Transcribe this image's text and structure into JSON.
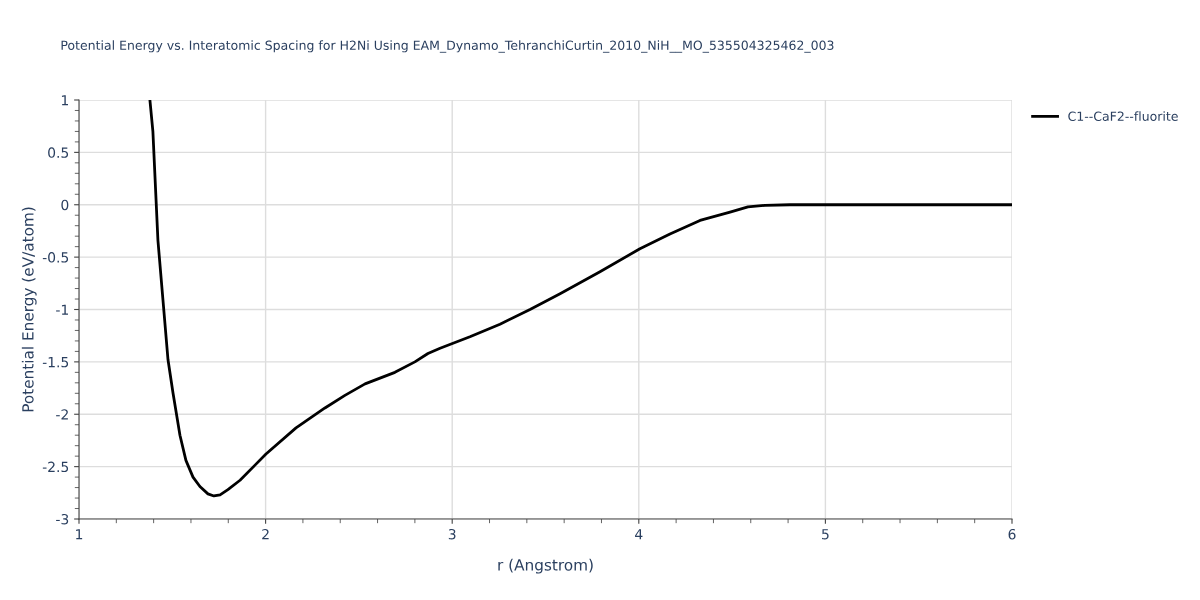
{
  "chart_data": {
    "type": "line",
    "title": "Potential Energy vs. Interatomic Spacing for H2Ni Using EAM_Dynamo_TehranchiCurtin_2010_NiH__MO_535504325462_003",
    "xlabel": "r (Angstrom)",
    "ylabel": "Potential Energy (eV/atom)",
    "series": [
      {
        "name": "C1--CaF2--fluorite",
        "color": "#000000",
        "x": [
          1.38,
          1.396,
          1.423,
          1.45,
          1.477,
          1.504,
          1.541,
          1.573,
          1.611,
          1.648,
          1.691,
          1.723,
          1.756,
          1.798,
          1.863,
          2.002,
          2.163,
          2.318,
          2.425,
          2.533,
          2.693,
          2.8,
          2.87,
          2.935,
          3.095,
          3.256,
          3.417,
          3.578,
          3.792,
          4.006,
          4.167,
          4.328,
          4.489,
          4.585,
          4.676,
          4.81,
          5.0,
          5.5,
          6.0
        ],
        "values": [
          1.0,
          0.7,
          -0.34,
          -0.91,
          -1.48,
          -1.8,
          -2.2,
          -2.44,
          -2.6,
          -2.69,
          -2.76,
          -2.78,
          -2.77,
          -2.72,
          -2.63,
          -2.38,
          -2.13,
          -1.94,
          -1.82,
          -1.71,
          -1.6,
          -1.5,
          -1.42,
          -1.37,
          -1.26,
          -1.14,
          -1.0,
          -0.85,
          -0.64,
          -0.42,
          -0.28,
          -0.15,
          -0.07,
          -0.02,
          -0.005,
          0.0,
          0.0,
          0.0,
          0.0
        ]
      }
    ],
    "xlim": [
      1,
      6
    ],
    "xticks": [
      1,
      2,
      3,
      4,
      5,
      6
    ],
    "ylim": [
      -3,
      1
    ],
    "yticks": [
      -3,
      -2.5,
      -2,
      -1.5,
      -1,
      -0.5,
      0,
      0.5,
      1
    ],
    "grid": true,
    "legend": "top right",
    "marker": "none",
    "line_style": "solid"
  }
}
